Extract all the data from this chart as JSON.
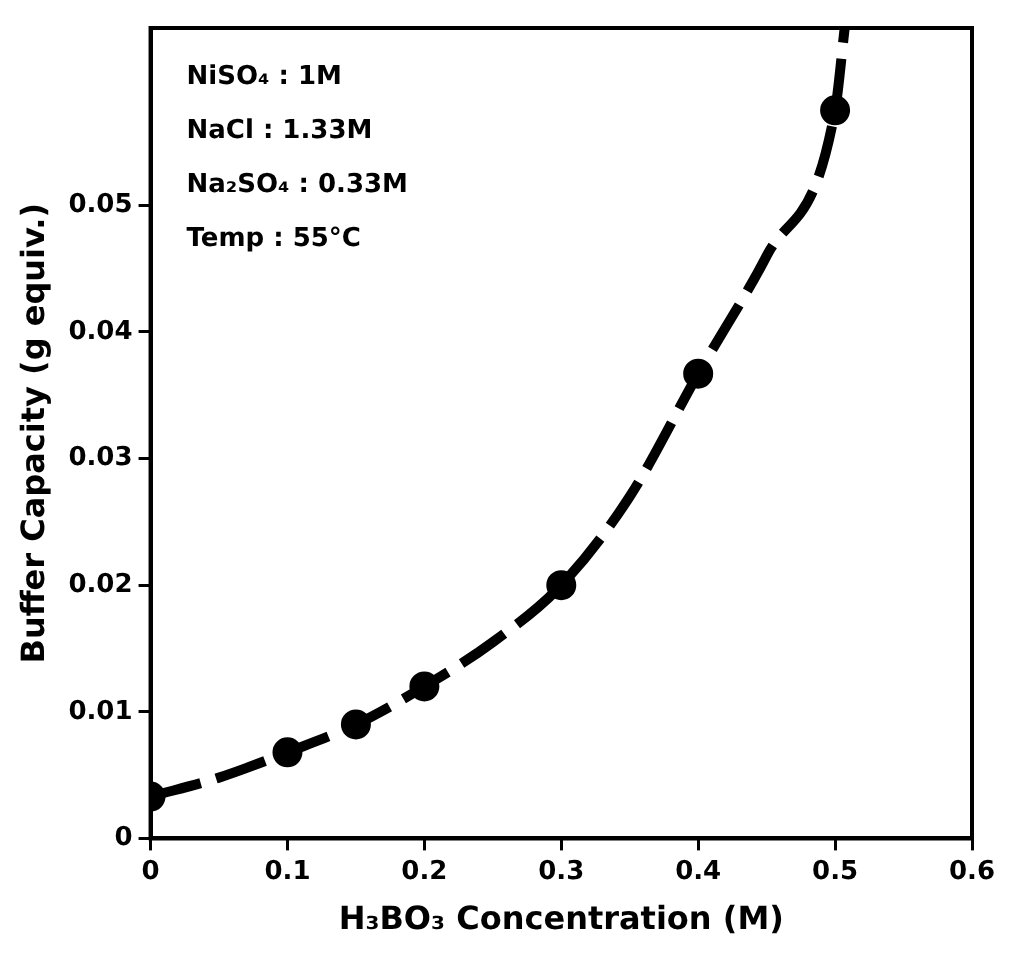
{
  "chart_data": {
    "type": "scatter",
    "xlabel": "H₃BO₃ Concentration (M)",
    "ylabel": "Buffer Capacity (g equiv.)",
    "annotations": [
      "NiSO₄ : 1M",
      "NaCl : 1.33M",
      "Na₂SO₄ : 0.33M",
      "Temp : 55°C"
    ],
    "xlim": [
      0,
      0.6
    ],
    "xticks": [
      0,
      0.1,
      0.2,
      0.3,
      0.4,
      0.5,
      0.6
    ],
    "ylim": [
      0,
      0.064
    ],
    "yticks": [
      0,
      0.01,
      0.02,
      0.03,
      0.04,
      0.05
    ],
    "grid": false,
    "legend": false,
    "marker": "circle",
    "series": [
      {
        "color": "#000000",
        "x": [
          0,
          0.1,
          0.15,
          0.2,
          0.3,
          0.4,
          0.5
        ],
        "values": [
          0.0033,
          0.0068,
          0.009,
          0.012,
          0.02,
          0.0367,
          0.0575
        ]
      },
      {
        "type": "line",
        "color": "#000000",
        "line_style": "dashed",
        "marker": "none",
        "x": [
          0,
          0.05,
          0.1,
          0.15,
          0.2,
          0.25,
          0.3,
          0.35,
          0.4,
          0.45,
          0.5,
          0.507
        ],
        "values": [
          0.0033,
          0.0048,
          0.0068,
          0.009,
          0.012,
          0.0155,
          0.02,
          0.027,
          0.0367,
          0.046,
          0.0575,
          0.064
        ]
      }
    ]
  }
}
